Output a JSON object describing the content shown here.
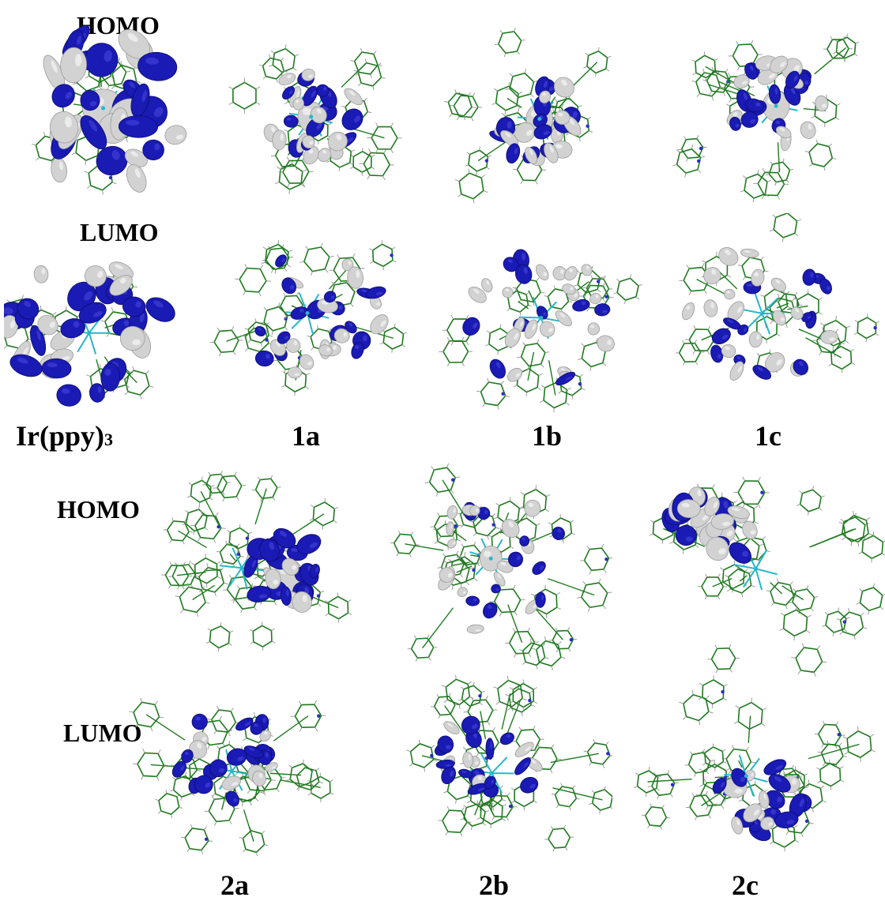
{
  "top": {
    "homo_label": "HOMO",
    "lumo_label": "LUMO",
    "compounds": [
      {
        "name": "Ir(ppy)",
        "sub": "3"
      },
      {
        "name": "1a"
      },
      {
        "name": "1b"
      },
      {
        "name": "1c"
      }
    ]
  },
  "bottom": {
    "homo_label": "HOMO",
    "lumo_label": "LUMO",
    "compounds": [
      {
        "name": "2a"
      },
      {
        "name": "2b"
      },
      {
        "name": "2c"
      }
    ]
  },
  "colors": {
    "positive_lobe": "#1a1ab4",
    "negative_lobe": "#d2d2d2",
    "bond": "#1f7a1f",
    "nitrogen": "#2b2bd0",
    "iridium": "#27b7c8",
    "hydrogen": "#f0f0f0"
  }
}
